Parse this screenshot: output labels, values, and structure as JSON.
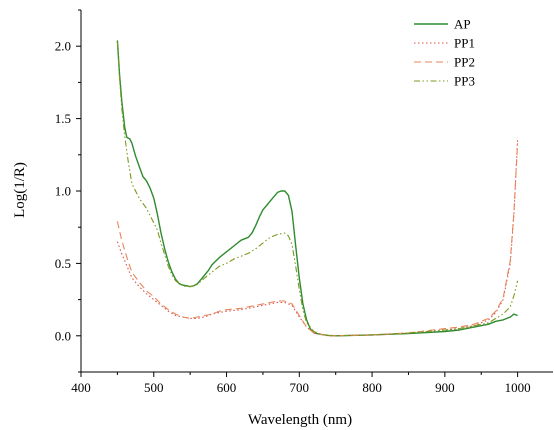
{
  "chart_data": {
    "type": "line",
    "title": "",
    "xlabel": "Wavelength (nm)",
    "ylabel": "Log(1/R)",
    "xlim": [
      400,
      1050
    ],
    "ylim": [
      -0.25,
      2.25
    ],
    "xticks": [
      400,
      500,
      600,
      700,
      800,
      900,
      1000
    ],
    "yticks": [
      0.0,
      0.5,
      1.0,
      1.5,
      2.0
    ],
    "xtick_labels": [
      "400",
      "500",
      "600",
      "700",
      "800",
      "900",
      "1000"
    ],
    "ytick_labels": [
      "0.0",
      "0.5",
      "1.0",
      "1.5",
      "2.0"
    ],
    "grid": false,
    "legend_position": "top-right",
    "series": [
      {
        "name": "AP",
        "color": "#2e8b2e",
        "dash": "solid",
        "points": [
          [
            450,
            2.04
          ],
          [
            453,
            1.8
          ],
          [
            456,
            1.62
          ],
          [
            460,
            1.44
          ],
          [
            463,
            1.37
          ],
          [
            467,
            1.36
          ],
          [
            470,
            1.33
          ],
          [
            475,
            1.24
          ],
          [
            480,
            1.17
          ],
          [
            485,
            1.1
          ],
          [
            490,
            1.07
          ],
          [
            495,
            1.02
          ],
          [
            500,
            0.95
          ],
          [
            505,
            0.84
          ],
          [
            510,
            0.71
          ],
          [
            515,
            0.6
          ],
          [
            520,
            0.51
          ],
          [
            525,
            0.44
          ],
          [
            530,
            0.39
          ],
          [
            535,
            0.36
          ],
          [
            540,
            0.35
          ],
          [
            545,
            0.345
          ],
          [
            550,
            0.34
          ],
          [
            555,
            0.345
          ],
          [
            560,
            0.36
          ],
          [
            565,
            0.39
          ],
          [
            570,
            0.42
          ],
          [
            575,
            0.45
          ],
          [
            580,
            0.49
          ],
          [
            590,
            0.54
          ],
          [
            600,
            0.58
          ],
          [
            610,
            0.62
          ],
          [
            620,
            0.66
          ],
          [
            630,
            0.68
          ],
          [
            635,
            0.71
          ],
          [
            640,
            0.76
          ],
          [
            645,
            0.82
          ],
          [
            650,
            0.87
          ],
          [
            655,
            0.9
          ],
          [
            660,
            0.93
          ],
          [
            665,
            0.96
          ],
          [
            670,
            0.99
          ],
          [
            675,
            1.0
          ],
          [
            680,
            1.0
          ],
          [
            685,
            0.97
          ],
          [
            690,
            0.86
          ],
          [
            695,
            0.62
          ],
          [
            700,
            0.4
          ],
          [
            705,
            0.22
          ],
          [
            710,
            0.11
          ],
          [
            715,
            0.05
          ],
          [
            720,
            0.02
          ],
          [
            730,
            0.01
          ],
          [
            740,
            0.003
          ],
          [
            750,
            0.0
          ],
          [
            800,
            0.006
          ],
          [
            850,
            0.015
          ],
          [
            900,
            0.03
          ],
          [
            920,
            0.04
          ],
          [
            940,
            0.06
          ],
          [
            960,
            0.08
          ],
          [
            970,
            0.1
          ],
          [
            980,
            0.11
          ],
          [
            990,
            0.13
          ],
          [
            995,
            0.15
          ],
          [
            1000,
            0.14
          ]
        ]
      },
      {
        "name": "PP1",
        "color": "#d9534f",
        "dash": "1.5,2.5",
        "points": [
          [
            450,
            0.65
          ],
          [
            455,
            0.58
          ],
          [
            460,
            0.52
          ],
          [
            465,
            0.46
          ],
          [
            470,
            0.4
          ],
          [
            480,
            0.34
          ],
          [
            490,
            0.29
          ],
          [
            500,
            0.25
          ],
          [
            510,
            0.21
          ],
          [
            520,
            0.17
          ],
          [
            530,
            0.14
          ],
          [
            540,
            0.13
          ],
          [
            550,
            0.12
          ],
          [
            560,
            0.12
          ],
          [
            570,
            0.13
          ],
          [
            580,
            0.15
          ],
          [
            590,
            0.16
          ],
          [
            600,
            0.17
          ],
          [
            620,
            0.18
          ],
          [
            640,
            0.2
          ],
          [
            660,
            0.22
          ],
          [
            670,
            0.23
          ],
          [
            680,
            0.23
          ],
          [
            690,
            0.21
          ],
          [
            700,
            0.13
          ],
          [
            710,
            0.06
          ],
          [
            720,
            0.02
          ],
          [
            740,
            0.0
          ],
          [
            800,
            0.005
          ],
          [
            850,
            0.02
          ],
          [
            900,
            0.04
          ],
          [
            920,
            0.05
          ],
          [
            940,
            0.07
          ],
          [
            960,
            0.11
          ],
          [
            970,
            0.16
          ],
          [
            980,
            0.25
          ],
          [
            990,
            0.5
          ],
          [
            995,
            0.85
          ],
          [
            1000,
            1.36
          ]
        ]
      },
      {
        "name": "PP2",
        "color": "#e8875a",
        "dash": "7,4",
        "points": [
          [
            450,
            0.79
          ],
          [
            455,
            0.68
          ],
          [
            460,
            0.59
          ],
          [
            465,
            0.51
          ],
          [
            470,
            0.44
          ],
          [
            480,
            0.37
          ],
          [
            490,
            0.31
          ],
          [
            500,
            0.27
          ],
          [
            510,
            0.22
          ],
          [
            520,
            0.18
          ],
          [
            530,
            0.15
          ],
          [
            540,
            0.13
          ],
          [
            550,
            0.12
          ],
          [
            560,
            0.13
          ],
          [
            570,
            0.14
          ],
          [
            580,
            0.15
          ],
          [
            590,
            0.17
          ],
          [
            600,
            0.18
          ],
          [
            620,
            0.19
          ],
          [
            640,
            0.21
          ],
          [
            660,
            0.23
          ],
          [
            670,
            0.24
          ],
          [
            680,
            0.24
          ],
          [
            690,
            0.22
          ],
          [
            700,
            0.14
          ],
          [
            710,
            0.06
          ],
          [
            720,
            0.02
          ],
          [
            740,
            0.0
          ],
          [
            800,
            0.005
          ],
          [
            850,
            0.02
          ],
          [
            900,
            0.05
          ],
          [
            920,
            0.06
          ],
          [
            940,
            0.08
          ],
          [
            960,
            0.12
          ],
          [
            970,
            0.17
          ],
          [
            980,
            0.26
          ],
          [
            990,
            0.52
          ],
          [
            995,
            0.86
          ],
          [
            1000,
            1.33
          ]
        ]
      },
      {
        "name": "PP3",
        "color": "#7a9a1e",
        "dash": "6,2.5,1.5,2.5,1.5,2.5",
        "points": [
          [
            450,
            2.03
          ],
          [
            453,
            1.77
          ],
          [
            456,
            1.57
          ],
          [
            460,
            1.38
          ],
          [
            465,
            1.2
          ],
          [
            470,
            1.05
          ],
          [
            480,
            0.95
          ],
          [
            490,
            0.88
          ],
          [
            500,
            0.78
          ],
          [
            505,
            0.73
          ],
          [
            510,
            0.64
          ],
          [
            515,
            0.56
          ],
          [
            520,
            0.48
          ],
          [
            525,
            0.42
          ],
          [
            530,
            0.38
          ],
          [
            535,
            0.36
          ],
          [
            540,
            0.345
          ],
          [
            545,
            0.34
          ],
          [
            550,
            0.34
          ],
          [
            555,
            0.345
          ],
          [
            560,
            0.355
          ],
          [
            570,
            0.4
          ],
          [
            580,
            0.44
          ],
          [
            590,
            0.48
          ],
          [
            600,
            0.5
          ],
          [
            610,
            0.53
          ],
          [
            620,
            0.55
          ],
          [
            630,
            0.57
          ],
          [
            640,
            0.6
          ],
          [
            650,
            0.64
          ],
          [
            660,
            0.68
          ],
          [
            670,
            0.7
          ],
          [
            680,
            0.71
          ],
          [
            685,
            0.69
          ],
          [
            690,
            0.63
          ],
          [
            695,
            0.48
          ],
          [
            700,
            0.32
          ],
          [
            705,
            0.18
          ],
          [
            710,
            0.09
          ],
          [
            720,
            0.03
          ],
          [
            730,
            0.01
          ],
          [
            740,
            0.003
          ],
          [
            750,
            0.0
          ],
          [
            800,
            0.006
          ],
          [
            850,
            0.02
          ],
          [
            900,
            0.04
          ],
          [
            920,
            0.05
          ],
          [
            940,
            0.07
          ],
          [
            960,
            0.09
          ],
          [
            970,
            0.12
          ],
          [
            980,
            0.15
          ],
          [
            990,
            0.2
          ],
          [
            995,
            0.28
          ],
          [
            1000,
            0.38
          ]
        ]
      }
    ]
  }
}
